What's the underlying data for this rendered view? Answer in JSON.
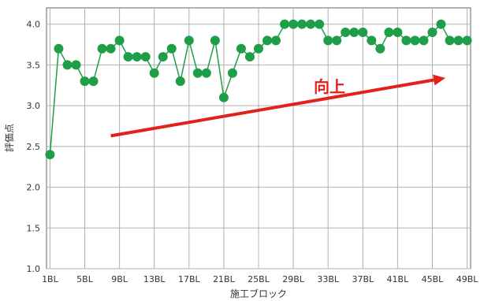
{
  "chart_data": {
    "type": "line",
    "title": "",
    "xlabel": "施工ブロック",
    "ylabel": "評価点",
    "ylim": [
      1.0,
      4.2
    ],
    "yticks": [
      "1.0",
      "1.5",
      "2.0",
      "2.5",
      "3.0",
      "3.5",
      "4.0"
    ],
    "xticks": [
      "1BL",
      "5BL",
      "9BL",
      "13BL",
      "17BL",
      "21BL",
      "25BL",
      "29BL",
      "33BL",
      "37BL",
      "41BL",
      "45BL",
      "49BL"
    ],
    "grid": true,
    "legend": "none",
    "series": [
      {
        "color": "#1e9e47",
        "x": [
          1,
          2,
          3,
          4,
          5,
          6,
          7,
          8,
          9,
          10,
          11,
          12,
          13,
          14,
          15,
          16,
          17,
          18,
          19,
          20,
          21,
          22,
          23,
          24,
          25,
          26,
          27,
          28,
          29,
          30,
          31,
          32,
          33,
          34,
          35,
          36,
          37,
          38,
          39,
          40,
          41,
          42,
          43,
          44,
          45,
          46,
          47,
          48,
          49
        ],
        "values": [
          2.4,
          3.7,
          3.5,
          3.5,
          3.3,
          3.3,
          3.7,
          3.7,
          3.8,
          3.6,
          3.6,
          3.6,
          3.4,
          3.6,
          3.7,
          3.3,
          3.8,
          3.4,
          3.4,
          3.8,
          3.1,
          3.4,
          3.7,
          3.6,
          3.7,
          3.8,
          3.8,
          4.0,
          4.0,
          4.0,
          4.0,
          4.0,
          3.8,
          3.8,
          3.9,
          3.9,
          3.9,
          3.8,
          3.7,
          3.9,
          3.9,
          3.8,
          3.8,
          3.8,
          3.9,
          4.0,
          3.8,
          3.8,
          3.8
        ]
      }
    ],
    "annotations": [
      {
        "text": "向上",
        "color": "#e3201b",
        "arrow_from": [
          8.0,
          2.63
        ],
        "arrow_to": [
          46.5,
          3.34
        ]
      }
    ]
  }
}
